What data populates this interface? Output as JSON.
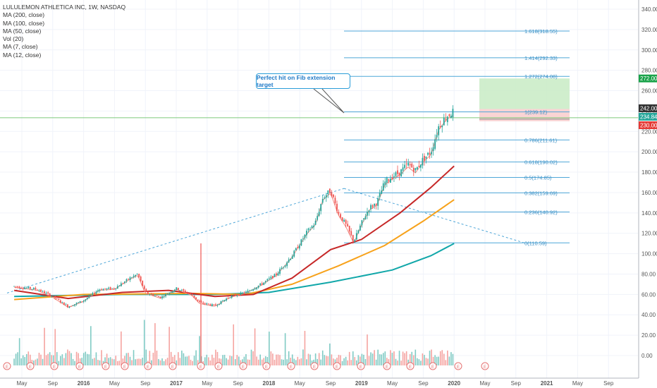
{
  "legend": {
    "title": "LULULEMON ATHLETICA INC, 1W, NASDAQ",
    "items": [
      "MA (200, close)",
      "MA (100, close)",
      "MA (50, close)",
      "Vol (20)",
      "MA (7, close)",
      "MA (12, close)"
    ]
  },
  "annotation": "Perfect hit on Fib extension target",
  "colors": {
    "up": "#26a69a",
    "down": "#ef5350",
    "ma200": "#11a7a9",
    "ma100": "#f7a21b",
    "ma50": "#c62828",
    "ma12": "#f28b82",
    "fib": "#4fa7d8",
    "target_zone": "#c8ebc4",
    "stop_zone": "#f9cccc",
    "price_line": "#7dc97b"
  },
  "chart_data": {
    "type": "candlestick",
    "title": "LULULEMON ATHLETICA INC, 1W, NASDAQ",
    "x_ticks": [
      "May",
      "Sep",
      "2016",
      "May",
      "Sep",
      "2017",
      "May",
      "Sep",
      "2018",
      "May",
      "Sep",
      "2019",
      "May",
      "Sep",
      "2020",
      "May",
      "Sep",
      "2021",
      "May",
      "Sep"
    ],
    "x_ticks_bold": [
      "2016",
      "2017",
      "2018",
      "2019",
      "2020",
      "2021"
    ],
    "y_ticks": [
      "340.00",
      "320.00",
      "300.00",
      "280.00",
      "260.00",
      "240.00",
      "220.00",
      "200.00",
      "180.00",
      "160.00",
      "140.00",
      "120.00",
      "100.00",
      "80.00",
      "60.00",
      "40.00",
      "20.00",
      "0.00"
    ],
    "ylim": [
      -10,
      345
    ],
    "price_labels": [
      {
        "text": "272.00",
        "value": 272,
        "color": "#1aa34a"
      },
      {
        "text": "242.00",
        "value": 242,
        "color": "#333333"
      },
      {
        "text": "234.84",
        "value": 234.84,
        "color": "#26a69a"
      },
      {
        "text": "230.00",
        "value": 230,
        "color": "#e53935"
      }
    ],
    "fib_levels": [
      {
        "label": "0(110.59)",
        "value": 110.59
      },
      {
        "label": "0.236(140.92)",
        "value": 140.92
      },
      {
        "label": "0.382(159.69)",
        "value": 159.69
      },
      {
        "label": "0.5(174.85)",
        "value": 174.85
      },
      {
        "label": "0.618(190.02)",
        "value": 190.02
      },
      {
        "label": "0.786(211.61)",
        "value": 211.61
      },
      {
        "label": "1(239.12)",
        "value": 239.12
      },
      {
        "label": "1.272(274.08)",
        "value": 274.08
      },
      {
        "label": "1.414(292.33)",
        "value": 292.33
      },
      {
        "label": "1.618(318.55)",
        "value": 318.55
      }
    ],
    "trend_points": [
      {
        "date": "2015-04",
        "value": 60
      },
      {
        "date": "2018-08",
        "value": 164
      },
      {
        "date": "2020-10",
        "value": 110.6
      }
    ],
    "price_path": [
      {
        "date": "2015-04",
        "value": 68
      },
      {
        "date": "2015-07",
        "value": 65
      },
      {
        "date": "2015-09",
        "value": 58
      },
      {
        "date": "2015-11",
        "value": 48
      },
      {
        "date": "2016-01",
        "value": 54
      },
      {
        "date": "2016-03",
        "value": 65
      },
      {
        "date": "2016-05",
        "value": 66
      },
      {
        "date": "2016-07",
        "value": 76
      },
      {
        "date": "2016-08",
        "value": 80
      },
      {
        "date": "2016-09",
        "value": 62
      },
      {
        "date": "2016-11",
        "value": 57
      },
      {
        "date": "2017-01",
        "value": 66
      },
      {
        "date": "2017-03",
        "value": 60
      },
      {
        "date": "2017-04",
        "value": 52
      },
      {
        "date": "2017-06",
        "value": 49
      },
      {
        "date": "2017-08",
        "value": 58
      },
      {
        "date": "2017-10",
        "value": 62
      },
      {
        "date": "2017-12",
        "value": 70
      },
      {
        "date": "2018-02",
        "value": 80
      },
      {
        "date": "2018-04",
        "value": 98
      },
      {
        "date": "2018-06",
        "value": 122
      },
      {
        "date": "2018-07",
        "value": 130
      },
      {
        "date": "2018-08",
        "value": 155
      },
      {
        "date": "2018-09",
        "value": 162
      },
      {
        "date": "2018-10",
        "value": 140
      },
      {
        "date": "2018-11",
        "value": 128
      },
      {
        "date": "2018-12",
        "value": 112
      },
      {
        "date": "2019-01",
        "value": 130
      },
      {
        "date": "2019-02",
        "value": 145
      },
      {
        "date": "2019-03",
        "value": 150
      },
      {
        "date": "2019-04",
        "value": 170
      },
      {
        "date": "2019-05",
        "value": 176
      },
      {
        "date": "2019-06",
        "value": 180
      },
      {
        "date": "2019-07",
        "value": 188
      },
      {
        "date": "2019-08",
        "value": 182
      },
      {
        "date": "2019-09",
        "value": 193
      },
      {
        "date": "2019-10",
        "value": 200
      },
      {
        "date": "2019-11",
        "value": 225
      },
      {
        "date": "2019-12",
        "value": 235
      },
      {
        "date": "2020-01",
        "value": 240
      }
    ],
    "target_zone": {
      "from": 242,
      "to": 272,
      "start": "2020-01",
      "end": "2021-03"
    },
    "stop_zone": {
      "from": 230,
      "to": 242,
      "start": "2020-01",
      "end": "2021-03"
    },
    "current_price": 234.84,
    "moving_averages": [
      {
        "name": "MA (200, close)",
        "points": [
          {
            "date": "2015-04",
            "value": 58
          },
          {
            "date": "2016-06",
            "value": 60
          },
          {
            "date": "2017-06",
            "value": 60
          },
          {
            "date": "2018-01",
            "value": 62
          },
          {
            "date": "2018-09",
            "value": 72
          },
          {
            "date": "2019-05",
            "value": 84
          },
          {
            "date": "2019-10",
            "value": 98
          },
          {
            "date": "2020-01",
            "value": 110
          }
        ]
      },
      {
        "name": "MA (100, close)",
        "points": [
          {
            "date": "2015-04",
            "value": 55
          },
          {
            "date": "2016-01",
            "value": 60
          },
          {
            "date": "2017-03",
            "value": 61
          },
          {
            "date": "2017-10",
            "value": 60
          },
          {
            "date": "2018-04",
            "value": 70
          },
          {
            "date": "2018-10",
            "value": 88
          },
          {
            "date": "2019-04",
            "value": 108
          },
          {
            "date": "2019-09",
            "value": 132
          },
          {
            "date": "2020-01",
            "value": 153
          }
        ]
      },
      {
        "name": "MA (50, close)",
        "points": [
          {
            "date": "2015-04",
            "value": 64
          },
          {
            "date": "2015-11",
            "value": 56
          },
          {
            "date": "2016-06",
            "value": 62
          },
          {
            "date": "2016-12",
            "value": 64
          },
          {
            "date": "2017-06",
            "value": 58
          },
          {
            "date": "2017-11",
            "value": 60
          },
          {
            "date": "2018-04",
            "value": 76
          },
          {
            "date": "2018-09",
            "value": 104
          },
          {
            "date": "2019-01",
            "value": 114
          },
          {
            "date": "2019-06",
            "value": 140
          },
          {
            "date": "2019-10",
            "value": 165
          },
          {
            "date": "2020-01",
            "value": 186
          }
        ]
      }
    ],
    "volume_axis_max": 50,
    "xlabel": "",
    "ylabel": ""
  }
}
